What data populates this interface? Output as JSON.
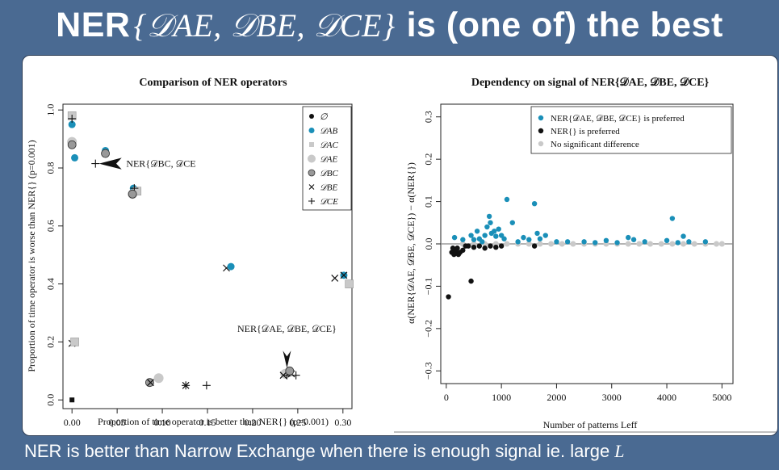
{
  "slide": {
    "title_text": "NER",
    "title_math": "{𝒟AE, 𝒟BE, 𝒟CE}",
    "title_tail": "is (one of) the best",
    "caption_text": "NER is better than Narrow Exchange when there is enough signal ie. large",
    "caption_math": "L"
  },
  "colors": {
    "teal": "#1a8fb8",
    "black": "#111111",
    "gray": "#c9c9c9",
    "background": "#4a6a92"
  },
  "chart_data": [
    {
      "type": "scatter",
      "title": "Comparison of NER operators",
      "xlabel": "Proportion of time operator is better than NER{} (p=0.001)",
      "ylabel": "Proportion of time operator is worse than NER{} (p=0.001)",
      "xlim": [
        -0.01,
        0.31
      ],
      "ylim": [
        -0.03,
        1.02
      ],
      "xticks": [
        0.0,
        0.05,
        0.1,
        0.15,
        0.2,
        0.25,
        0.3
      ],
      "xtick_labels": [
        "0.00",
        "0.05",
        "0.10",
        "0.15",
        "0.20",
        "0.25",
        "0.30"
      ],
      "yticks": [
        0.0,
        0.2,
        0.4,
        0.6,
        0.8,
        1.0
      ],
      "ytick_labels": [
        "0.0",
        "0.2",
        "0.4",
        "0.6",
        "0.8",
        "1.0"
      ],
      "legend_position": "top-right",
      "legend": [
        {
          "label": "∅",
          "marker": "dot",
          "color": "#111111"
        },
        {
          "label": "𝒟AB",
          "marker": "dot",
          "color": "#1a8fb8"
        },
        {
          "label": "𝒟AC",
          "marker": "square",
          "color": "#c9c9c9"
        },
        {
          "label": "𝒟AE",
          "marker": "big-circle",
          "color": "#c9c9c9"
        },
        {
          "label": "𝒟BC",
          "marker": "ring",
          "color": "#555555"
        },
        {
          "label": "𝒟BE",
          "marker": "x",
          "color": "#111111"
        },
        {
          "label": "𝒟CE",
          "marker": "plus",
          "color": "#111111"
        }
      ],
      "points": [
        {
          "x": 0.0,
          "y": 0.98,
          "m": "square"
        },
        {
          "x": 0.0,
          "y": 0.95,
          "m": "dot-teal"
        },
        {
          "x": 0.0,
          "y": 0.97,
          "m": "plus"
        },
        {
          "x": 0.0,
          "y": 0.89,
          "m": "big-circle"
        },
        {
          "x": 0.0,
          "y": 0.88,
          "m": "ring"
        },
        {
          "x": 0.003,
          "y": 0.835,
          "m": "dot-teal"
        },
        {
          "x": 0.037,
          "y": 0.86,
          "m": "dot-teal"
        },
        {
          "x": 0.037,
          "y": 0.85,
          "m": "ring"
        },
        {
          "x": 0.026,
          "y": 0.815,
          "m": "plus"
        },
        {
          "x": 0.068,
          "y": 0.73,
          "m": "dot-teal"
        },
        {
          "x": 0.067,
          "y": 0.71,
          "m": "big-circle"
        },
        {
          "x": 0.072,
          "y": 0.72,
          "m": "square"
        },
        {
          "x": 0.069,
          "y": 0.73,
          "m": "plus"
        },
        {
          "x": 0.067,
          "y": 0.71,
          "m": "ring"
        },
        {
          "x": 0.171,
          "y": 0.455,
          "m": "x"
        },
        {
          "x": 0.176,
          "y": 0.46,
          "m": "dot-teal"
        },
        {
          "x": 0.291,
          "y": 0.42,
          "m": "x"
        },
        {
          "x": 0.301,
          "y": 0.43,
          "m": "dot-teal"
        },
        {
          "x": 0.301,
          "y": 0.43,
          "m": "x"
        },
        {
          "x": 0.307,
          "y": 0.4,
          "m": "x"
        },
        {
          "x": 0.307,
          "y": 0.4,
          "m": "square"
        },
        {
          "x": 0.0,
          "y": 0.195,
          "m": "x"
        },
        {
          "x": 0.003,
          "y": 0.2,
          "m": "square"
        },
        {
          "x": 0.0,
          "y": 0.0,
          "m": "square-dark"
        },
        {
          "x": 0.086,
          "y": 0.06,
          "m": "ring"
        },
        {
          "x": 0.087,
          "y": 0.06,
          "m": "x"
        },
        {
          "x": 0.096,
          "y": 0.075,
          "m": "big-circle"
        },
        {
          "x": 0.126,
          "y": 0.05,
          "m": "x"
        },
        {
          "x": 0.126,
          "y": 0.05,
          "m": "plus"
        },
        {
          "x": 0.149,
          "y": 0.05,
          "m": "plus"
        },
        {
          "x": 0.236,
          "y": 0.09,
          "m": "big-circle"
        },
        {
          "x": 0.24,
          "y": 0.095,
          "m": "big-circle"
        },
        {
          "x": 0.238,
          "y": 0.085,
          "m": "plus"
        },
        {
          "x": 0.243,
          "y": 0.09,
          "m": "x"
        },
        {
          "x": 0.248,
          "y": 0.085,
          "m": "plus"
        },
        {
          "x": 0.234,
          "y": 0.085,
          "m": "x"
        },
        {
          "x": 0.241,
          "y": 0.1,
          "m": "ring"
        }
      ],
      "annotations": [
        {
          "text": "NER{𝒟BC, 𝒟CE",
          "x": 0.06,
          "y": 0.815
        },
        {
          "text": "NER{𝒟AE, 𝒟BE, 𝒟CE}",
          "x": 0.238,
          "y": 0.235
        }
      ]
    },
    {
      "type": "scatter",
      "title": "Dependency on signal of NER{𝒟AE, 𝒟BE, 𝒟CE}",
      "xlabel": "Number of patterns Leff",
      "ylabel": "α(NER{𝒟AE, 𝒟BE, 𝒟CE}) − α(NER{})",
      "xlim": [
        -100,
        5200
      ],
      "ylim": [
        -0.33,
        0.33
      ],
      "xticks": [
        0,
        1000,
        2000,
        3000,
        4000,
        5000
      ],
      "xtick_labels": [
        "0",
        "1000",
        "2000",
        "3000",
        "4000",
        "5000"
      ],
      "yticks": [
        -0.3,
        -0.2,
        -0.1,
        0.0,
        0.1,
        0.2,
        0.3
      ],
      "ytick_labels": [
        "−0.3",
        "−0.2",
        "−0.1",
        "0.0",
        "0.1",
        "0.2",
        "0.3"
      ],
      "legend_position": "top-right",
      "series": [
        {
          "name": "NER{𝒟AE, 𝒟BE, 𝒟CE} is preferred",
          "color": "#1a8fb8",
          "x": [
            150,
            300,
            450,
            500,
            560,
            600,
            650,
            700,
            740,
            780,
            800,
            820,
            870,
            900,
            950,
            1000,
            1050,
            1100,
            1200,
            1300,
            1400,
            1500,
            1600,
            1650,
            1700,
            1800,
            2000,
            2200,
            2500,
            2700,
            2900,
            3100,
            3300,
            3400,
            3600,
            4000,
            4100,
            4200,
            4300,
            4400,
            4700
          ],
          "y": [
            0.015,
            0.01,
            0.02,
            0.01,
            0.03,
            0.012,
            0.005,
            0.02,
            0.04,
            0.065,
            0.05,
            0.025,
            0.03,
            0.018,
            0.035,
            0.02,
            0.012,
            0.105,
            0.05,
            0.005,
            0.015,
            0.01,
            0.095,
            0.025,
            0.012,
            0.02,
            0.005,
            0.005,
            0.005,
            0.003,
            0.008,
            0.003,
            0.015,
            0.01,
            0.005,
            0.008,
            0.06,
            0.003,
            0.018,
            0.005,
            0.005
          ]
        },
        {
          "name": "NER{} is preferred",
          "color": "#111111",
          "x": [
            40,
            100,
            120,
            140,
            160,
            180,
            200,
            220,
            250,
            300,
            350,
            400,
            450,
            500,
            600,
            700,
            800,
            900,
            1000,
            1600
          ],
          "y": [
            -0.125,
            -0.02,
            -0.01,
            -0.025,
            -0.015,
            -0.02,
            -0.01,
            -0.025,
            -0.02,
            -0.015,
            -0.005,
            -0.005,
            -0.088,
            -0.008,
            -0.005,
            -0.01,
            -0.005,
            -0.008,
            -0.005,
            -0.005
          ]
        },
        {
          "name": "No significant difference",
          "color": "#c9c9c9",
          "x": [
            300,
            500,
            700,
            900,
            1100,
            1300,
            1500,
            1700,
            1900,
            2100,
            2300,
            2500,
            2700,
            2900,
            3100,
            3300,
            3500,
            3700,
            3900,
            4100,
            4300,
            4500,
            4700,
            4900,
            5000
          ],
          "y": [
            0.0,
            0.0,
            0.0,
            0.0,
            0.0,
            0.0,
            0.0,
            0.0,
            0.0,
            0.0,
            0.0,
            0.0,
            0.0,
            0.0,
            0.0,
            0.0,
            0.0,
            0.0,
            0.0,
            0.0,
            0.0,
            0.0,
            0.0,
            0.0,
            0.0
          ]
        }
      ]
    }
  ]
}
